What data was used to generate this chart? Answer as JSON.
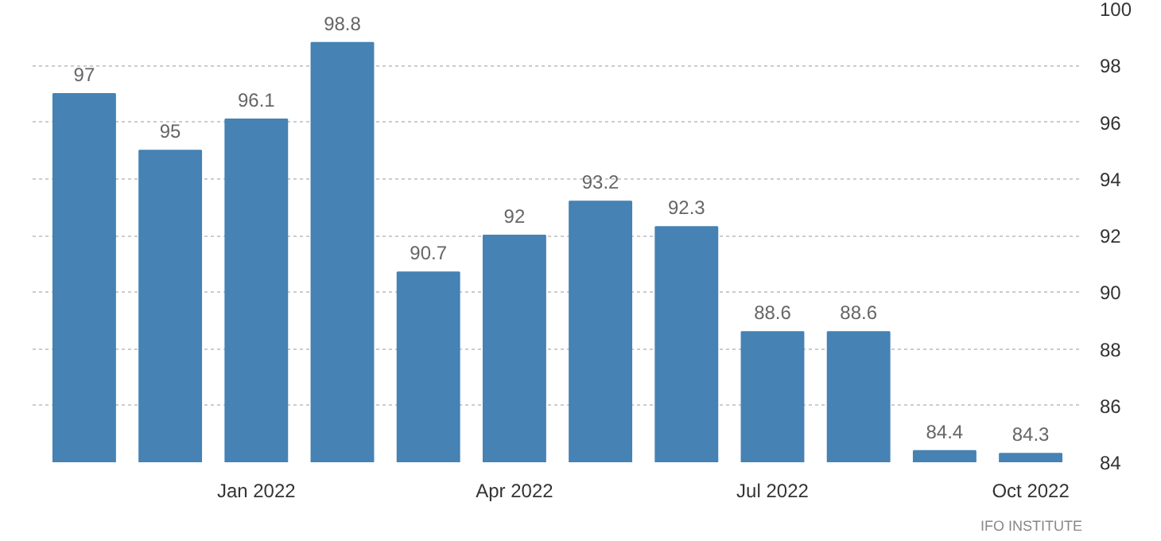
{
  "chart_data": {
    "type": "bar",
    "categories": [
      null,
      null,
      "Jan 2022",
      null,
      null,
      "Apr 2022",
      null,
      null,
      "Jul 2022",
      null,
      null,
      "Oct 2022"
    ],
    "values": [
      97,
      95,
      96.1,
      98.8,
      90.7,
      92,
      93.2,
      92.3,
      88.6,
      88.6,
      84.4,
      84.3
    ],
    "color": "#4682b4",
    "ylim": [
      84,
      100
    ],
    "yticks": [
      84,
      86,
      88,
      90,
      92,
      94,
      96,
      98,
      100
    ],
    "grid": "y",
    "data_labels": true,
    "annotations": [
      "IFO INSTITUTE"
    ]
  }
}
